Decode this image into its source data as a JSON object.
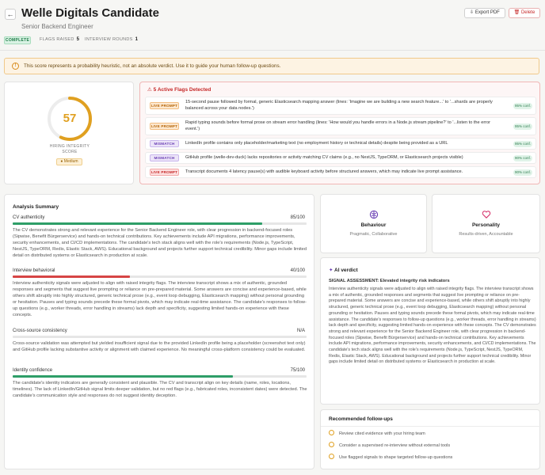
{
  "header": {
    "title": "Welle Digitals Candidate",
    "subtitle": "Senior Backend Engineer",
    "back_icon": "arrow-left-icon",
    "export_label": "⇩ Export PDF",
    "delete_label": "🗑 Delete"
  },
  "meta": {
    "status": "COMPLETE",
    "flags_raised_label": "FLAGS RAISED",
    "flags_raised_value": "5",
    "interview_rounds_label": "INTERVIEW ROUNDS",
    "interview_rounds_value": "1"
  },
  "warning": {
    "icon": "!",
    "text": "This score represents a probability heuristic, not an absolute verdict. Use it to guide your human follow-up questions."
  },
  "score": {
    "value": "57",
    "fraction": 0.57,
    "label_line1": "HIRING INTEGRITY",
    "label_line2": "SCORE",
    "level": "● Medium",
    "color": "#e0a020"
  },
  "flags": {
    "title": "⚠ 5 Active Flags Detected",
    "items": [
      {
        "tag": "LIVE PROMPT",
        "kind": "live",
        "text": "15-second pause followed by formal, generic Elasticsearch mapping answer (lines: 'Imagine we are building a new search feature...' to '...shards are properly balanced across your data nodes.')",
        "confidence": "95% conf."
      },
      {
        "tag": "LIVE PROMPT",
        "kind": "live",
        "text": "Rapid typing sounds before formal prose on stream error handling (lines: 'How would you handle errors in a Node.js stream pipeline?' to '...listen to the error event.')",
        "confidence": "95% conf."
      },
      {
        "tag": "MISMATCH",
        "kind": "mismatch",
        "text": "LinkedIn profile contains only placeholder/marketing text (no employment history or technical details) despite being provided as a URL",
        "confidence": "95% conf."
      },
      {
        "tag": "MISMATCH",
        "kind": "mismatch",
        "text": "GitHub profile (welle-dev-duck) lacks repositories or activity matching CV claims (e.g., no NestJS, TypeORM, or Elasticsearch projects visible)",
        "confidence": "90% conf."
      },
      {
        "tag": "LIVE PROMPT",
        "kind": "liverpd",
        "text": "Transcript documents 4 latency pause(s) with audible keyboard activity before structured answers, which may indicate live prompt assistance.",
        "confidence": "90% conf."
      }
    ]
  },
  "analysis": {
    "title": "Analysis Summary",
    "sections": [
      {
        "label": "CV authenticity",
        "score": "85/100",
        "value": 85,
        "color": "#2e9e68",
        "body": "The CV demonstrates strong and relevant experience for the Senior Backend Engineer role, with clear progression in backend-focused roles (Sipwise, Benefit Bürgerservice) and hands-on technical contributions. Key achievements include API migrations, performance improvements, security enhancements, and CI/CD implementations. The candidate's tech stack aligns well with the role's requirements (Node.js, TypeScript, NestJS, TypeORM, Redis, Elastic Stack, AWS). Educational background and projects further support technical credibility. Minor gaps include limited detail on distributed systems or Elasticsearch in production at scale."
      },
      {
        "label": "Interview behavioral",
        "score": "40/100",
        "value": 40,
        "color": "#d64545",
        "body": "Interview authenticity signals were adjusted to align with raised integrity flags. The interview transcript shows a mix of authentic, grounded responses and segments that suggest live prompting or reliance on pre-prepared material. Some answers are concise and experience-based, while others shift abruptly into highly structured, generic technical prose (e.g., event loop debugging, Elasticsearch mapping) without personal grounding or hesitation. Pauses and typing sounds precede these formal pivots, which may indicate real-time assistance. The candidate's responses to follow-up questions (e.g., worker threads, error handling in streams) lack depth and specificity, suggesting limited hands-on experience with these concepts."
      },
      {
        "label": "Cross-source consistency",
        "score": "N/A",
        "value": 0,
        "color": "#9a9a9a",
        "body": "Cross-source validation was attempted but yielded insufficient signal due to the provided LinkedIn profile being a placeholder (screenshot text only) and GitHub profile lacking substantive activity or alignment with claimed experience. No meaningful cross-platform consistency could be evaluated."
      },
      {
        "label": "Identity confidence",
        "score": "75/100",
        "value": 75,
        "color": "#2e9e68",
        "body": "The candidate's identity indicators are generally consistent and plausible. The CV and transcript align on key details (name, roles, locations, timelines). The lack of LinkedIn/GitHub signal limits deeper validation, but no red flags (e.g., fabricated roles, inconsistent dates) were detected. The candidate's communication style and responses do not suggest identity deception."
      }
    ]
  },
  "traits": {
    "behaviour": {
      "icon": "brain-icon",
      "title": "Behaviour",
      "subtitle": "Pragmatic, Collaborative"
    },
    "personality": {
      "icon": "heart-icon",
      "title": "Personality",
      "subtitle": "Results-driven, Accountable"
    }
  },
  "verdict": {
    "title": "AI verdict",
    "assessment": "SIGNAL ASSESSMENT: Elevated integrity risk indicators",
    "body": "Interview authenticity signals were adjusted to align with raised integrity flags. The interview transcript shows a mix of authentic, grounded responses and segments that suggest live prompting or reliance on pre-prepared material. Some answers are concise and experience-based, while others shift abruptly into highly structured, generic technical prose (e.g., event loop debugging, Elasticsearch mapping) without personal grounding or hesitation. Pauses and typing sounds precede these formal pivots, which may indicate real-time assistance. The candidate's responses to follow-up questions (e.g., worker threads, error handling in streams) lack depth and specificity, suggesting limited hands-on experience with these concepts. The CV demonstrates strong and relevant experience for the Senior Backend Engineer role, with clear progression in backend-focused roles (Sipwise, Benefit Bürgerservice) and hands-on technical contributions. Key achievements include API migrations, performance improvements, security enhancements, and CI/CD implementations. The candidate's tech stack aligns well with the role's requirements (Node.js, TypeScript, NestJS, TypeORM, Redis, Elastic Stack, AWS). Educational background and projects further support technical credibility. Minor gaps include limited detail on distributed systems or Elasticsearch in production at scale."
  },
  "followups": {
    "title": "Recommended follow-ups",
    "items": [
      "Review cited evidence with your hiring team",
      "Consider a supervised re-interview without external tools",
      "Use flagged signals to shape targeted follow-up questions"
    ]
  }
}
